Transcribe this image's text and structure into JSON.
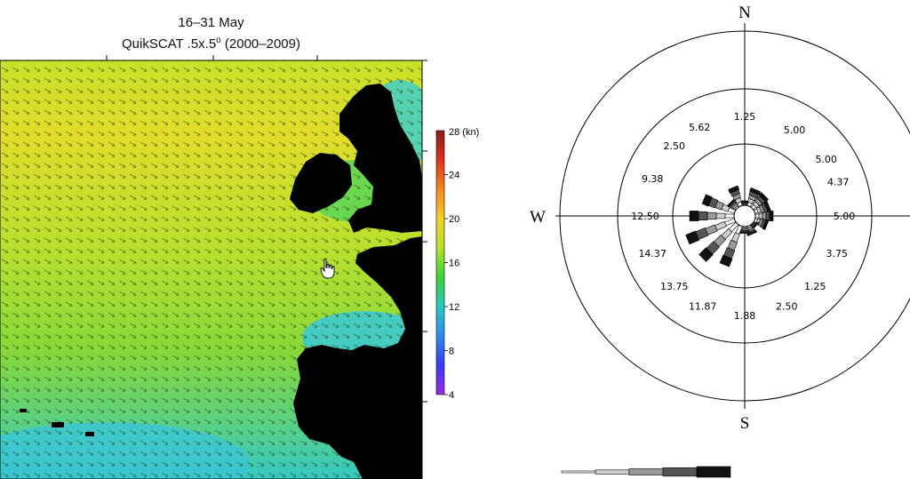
{
  "map": {
    "title_line1": "16–31 May",
    "title_line2_prefix": "QuikSCAT .5x.5",
    "title_line2_sup": "o",
    "title_line2_suffix": " (2000–2009)",
    "legend": {
      "unit_label": "28 (kn)",
      "ticks": [
        "24",
        "20",
        "16",
        "12",
        "8",
        "4"
      ],
      "min": 4,
      "max": 28,
      "colors": [
        "#8b1a1a",
        "#e03020",
        "#f08a1c",
        "#f2d22a",
        "#b8e02a",
        "#38d23a",
        "#28c8c0",
        "#2f8cf0",
        "#3a3af0",
        "#9a2ae6"
      ]
    }
  },
  "rose": {
    "compass": {
      "north": "N",
      "south": "S",
      "west": "W"
    },
    "labels": [
      {
        "text": "1.25",
        "deg": 0
      },
      {
        "text": "5.00",
        "deg": 30
      },
      {
        "text": "5.00",
        "deg": 55
      },
      {
        "text": "4.37",
        "deg": 70
      },
      {
        "text": "5.00",
        "deg": 90
      },
      {
        "text": "3.75",
        "deg": 112
      },
      {
        "text": "1.25",
        "deg": 135
      },
      {
        "text": "2.50",
        "deg": 155
      },
      {
        "text": "1.88",
        "deg": 180
      },
      {
        "text": "11.87",
        "deg": 205
      },
      {
        "text": "13.75",
        "deg": 225
      },
      {
        "text": "14.37",
        "deg": 248
      },
      {
        "text": "12.50",
        "deg": 270
      },
      {
        "text": "9.38",
        "deg": 292
      },
      {
        "text": "2.50",
        "deg": 315
      },
      {
        "text": "5.62",
        "deg": 333
      }
    ],
    "petals": [
      {
        "deg": 0,
        "value": 1.25
      },
      {
        "deg": 22.5,
        "value": 5.0
      },
      {
        "deg": 45,
        "value": 5.0
      },
      {
        "deg": 67.5,
        "value": 4.37
      },
      {
        "deg": 90,
        "value": 5.0
      },
      {
        "deg": 112.5,
        "value": 3.75
      },
      {
        "deg": 135,
        "value": 1.25
      },
      {
        "deg": 157.5,
        "value": 2.5
      },
      {
        "deg": 180,
        "value": 1.88
      },
      {
        "deg": 202.5,
        "value": 11.87
      },
      {
        "deg": 225,
        "value": 13.75
      },
      {
        "deg": 247.5,
        "value": 14.37
      },
      {
        "deg": 270,
        "value": 12.5
      },
      {
        "deg": 292.5,
        "value": 9.38
      },
      {
        "deg": 315,
        "value": 2.5
      },
      {
        "deg": 337.5,
        "value": 5.62
      }
    ],
    "speed_shades": [
      "#ffffff",
      "#d0d0d0",
      "#9a9a9a",
      "#555555",
      "#111111"
    ]
  }
}
